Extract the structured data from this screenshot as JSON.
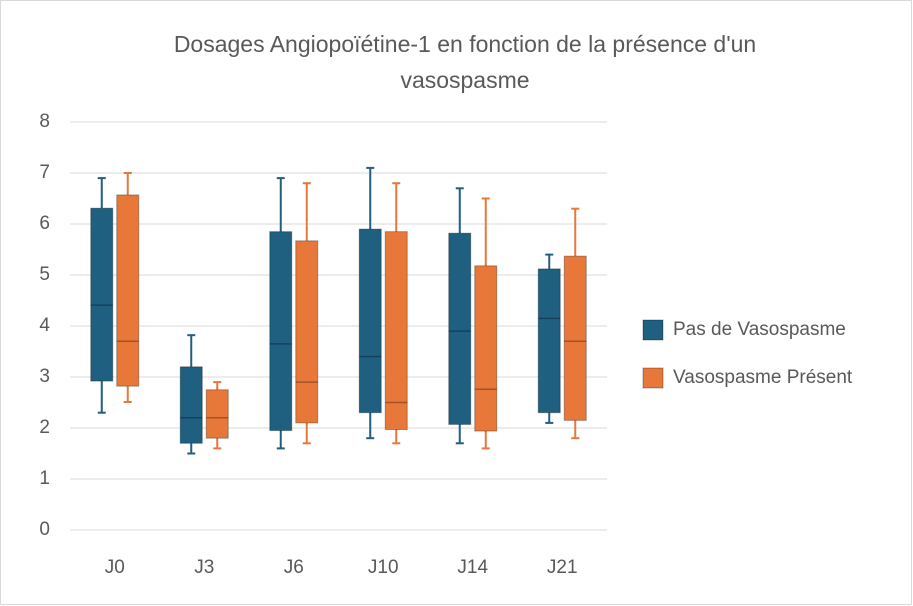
{
  "chart_data": {
    "type": "box",
    "title": "Dosages Angiopoïétine-1 en fonction de la présence d'un vasospasme",
    "categories": [
      "J0",
      "J3",
      "J6",
      "J10",
      "J14",
      "J21"
    ],
    "series": [
      {
        "name": "Pas de Vasospasme",
        "color": "#1f5f80",
        "whisker_low": [
          2.3,
          1.5,
          1.6,
          1.8,
          1.7,
          2.1
        ],
        "q1": [
          2.92,
          1.7,
          1.95,
          2.3,
          2.07,
          2.3
        ],
        "median": [
          4.41,
          2.2,
          3.65,
          3.4,
          3.9,
          4.15
        ],
        "q3": [
          6.31,
          3.2,
          5.85,
          5.9,
          5.82,
          5.12
        ],
        "whisker_high": [
          6.9,
          3.82,
          6.9,
          7.1,
          6.7,
          5.4
        ]
      },
      {
        "name": "Vasospasme Présent",
        "color": "#e8773a",
        "whisker_low": [
          2.51,
          1.6,
          1.7,
          1.7,
          1.6,
          1.8
        ],
        "q1": [
          2.82,
          1.8,
          2.1,
          1.97,
          1.94,
          2.15
        ],
        "median": [
          3.7,
          2.2,
          2.9,
          2.5,
          2.76,
          3.7
        ],
        "q3": [
          6.57,
          2.75,
          5.67,
          5.85,
          5.18,
          5.37
        ],
        "whisker_high": [
          7.0,
          2.9,
          6.8,
          6.8,
          6.5,
          6.3
        ]
      }
    ],
    "ylim": [
      0,
      8
    ],
    "yticks": [
      0,
      1,
      2,
      3,
      4,
      5,
      6,
      7,
      8
    ],
    "grid": true,
    "legend": "right"
  }
}
